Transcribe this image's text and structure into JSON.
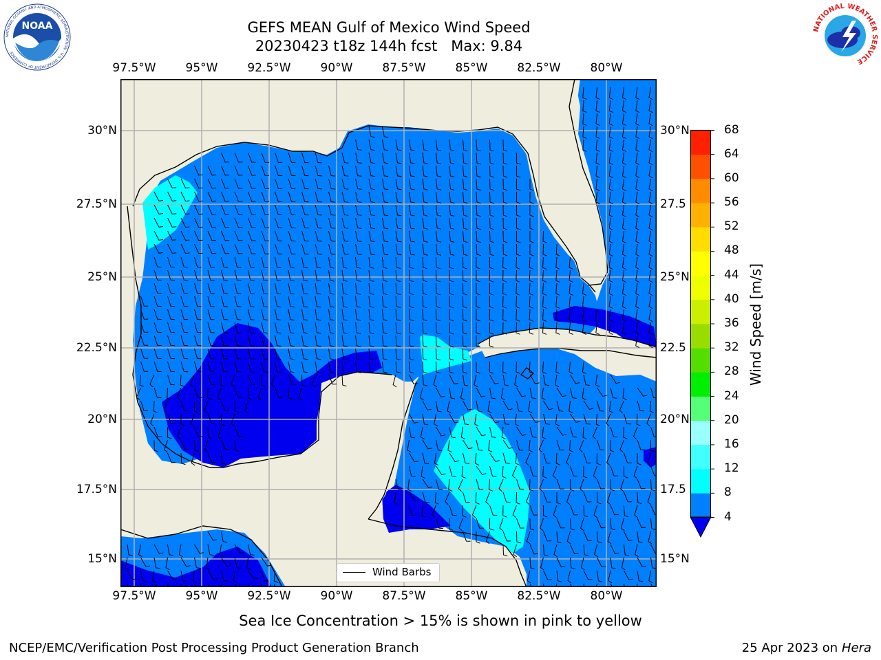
{
  "title": {
    "line1": "GEFS MEAN Gulf of Mexico Wind Speed",
    "line2": "20230423 t18z 144h fcst   Max: 9.84"
  },
  "lon_labels": [
    "97.5°W",
    "95°W",
    "92.5°W",
    "90°W",
    "87.5°W",
    "85°W",
    "82.5°W",
    "80°W"
  ],
  "lat_labels": [
    "30°N",
    "27.5°N",
    "25°N",
    "22.5°N",
    "20°N",
    "17.5°N",
    "15°N"
  ],
  "lat_labels_right": [
    "30°N",
    "27.5",
    "25°N",
    "22.5",
    "20°N",
    "17.5",
    "15°N"
  ],
  "legend": {
    "label": "Wind Barbs"
  },
  "colorbar": {
    "label": "Wind Speed [m/s]",
    "ticks": [
      "4",
      "8",
      "12",
      "16",
      "20",
      "24",
      "28",
      "32",
      "36",
      "40",
      "44",
      "48",
      "52",
      "56",
      "60",
      "64",
      "68"
    ],
    "colors": [
      "#0080ff",
      "#00ffff",
      "#40ffff",
      "#99ffff",
      "#55ff77",
      "#00ee00",
      "#55dd00",
      "#99dd00",
      "#ccee00",
      "#eeff00",
      "#ffff00",
      "#ffdd00",
      "#ffb000",
      "#ff8c00",
      "#ff5000",
      "#ff2000"
    ],
    "under_color": "#0000ee"
  },
  "notes": {
    "ice": "Sea Ice Concentration > 15% is shown in pink to yellow"
  },
  "footer": {
    "left": "NCEP/EMC/Verification Post Processing Product Generation Branch",
    "right_date": "25 Apr 2023 on ",
    "right_machine": "Hera"
  },
  "logos": {
    "noaa": "NOAA",
    "noaa_ring": "NATIONAL OCEANIC AND ATMOSPHERIC ADMINISTRATION · U.S. DEPARTMENT OF COMMERCE",
    "nws_ring": "NATIONAL WEATHER SERVICE"
  },
  "colors": {
    "land": "#efedde",
    "ocean_4_8": "#0080ff",
    "ocean_8_12": "#00ffff",
    "ocean_lt4": "#0000ee",
    "grid": "#b0b0b0"
  }
}
